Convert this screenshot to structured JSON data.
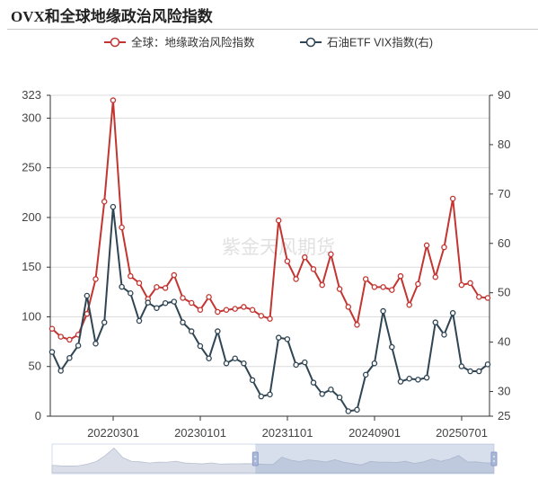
{
  "title": "OVX和全球地缘政治风险指数",
  "watermark": "紫金天风期货",
  "chart_data": {
    "type": "line",
    "x_ticks": [
      "20220301",
      "20230101",
      "20231101",
      "20240901",
      "20250701"
    ],
    "left_axis": {
      "min": 0,
      "max": 323,
      "ticks": [
        0,
        50,
        100,
        150,
        200,
        250,
        300,
        323
      ]
    },
    "right_axis": {
      "min": 25,
      "max": 90,
      "ticks": [
        25,
        30,
        40,
        50,
        60,
        70,
        80,
        90
      ]
    },
    "legend_position": "top-center",
    "series": [
      {
        "name": "全球：地缘政治风险指数",
        "axis": "left",
        "color": "#c23531",
        "values": [
          88,
          80,
          77,
          82,
          103,
          138,
          216,
          318,
          190,
          141,
          134,
          118,
          130,
          129,
          142,
          119,
          114,
          107,
          120,
          105,
          107,
          108,
          110,
          107,
          101,
          98,
          197,
          156,
          138,
          160,
          148,
          132,
          163,
          128,
          110,
          92,
          138,
          130,
          130,
          127,
          141,
          112,
          133,
          172,
          140,
          170,
          219,
          132,
          134,
          120,
          119
        ]
      },
      {
        "name": "石油ETF VIX指数(右)",
        "axis": "right",
        "color": "#2f4554",
        "values": [
          38.0,
          34.2,
          36.8,
          39.3,
          49.4,
          39.7,
          44.0,
          67.4,
          51.2,
          49.9,
          44.3,
          48.0,
          46.9,
          47.9,
          48.2,
          44.0,
          42.2,
          39.2,
          36.7,
          42.2,
          35.7,
          36.7,
          35.7,
          32.3,
          29.0,
          29.4,
          40.9,
          40.6,
          35.4,
          35.9,
          31.8,
          29.5,
          30.4,
          28.8,
          26.0,
          26.3,
          33.4,
          35.7,
          46.3,
          39.0,
          32.0,
          32.6,
          32.4,
          32.8,
          44.0,
          41.5,
          45.9,
          35.1,
          34.1,
          34.1,
          35.5
        ]
      }
    ]
  },
  "slider": {
    "window_start": 0.46,
    "window_end": 1.0
  }
}
